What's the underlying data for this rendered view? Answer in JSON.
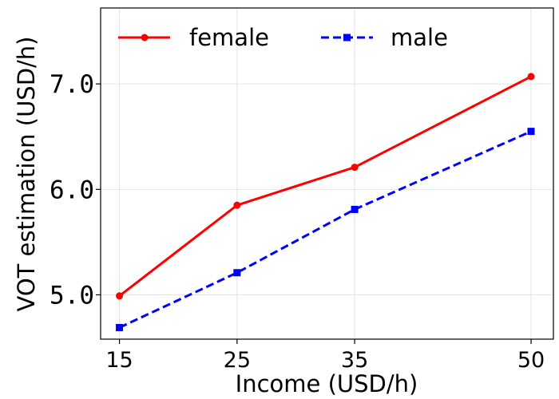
{
  "chart_data": {
    "type": "line",
    "title": "",
    "xlabel": "Income (USD/h)",
    "ylabel": "VOT estimation (USD/h)",
    "x": [
      15,
      25,
      35,
      50
    ],
    "x_tick_labels": [
      "15",
      "25",
      "35",
      "50"
    ],
    "y_ticks": [
      5.0,
      6.0,
      7.0
    ],
    "y_tick_labels": [
      "5.0",
      "6.0",
      "7.0"
    ],
    "xlim": [
      13.4,
      51.9
    ],
    "ylim": [
      4.58,
      7.72
    ],
    "grid": true,
    "legend_position": "top",
    "series": [
      {
        "name": "female",
        "values": [
          4.99,
          5.85,
          6.21,
          7.07
        ],
        "color": "#ff0000",
        "line_style": "solid",
        "marker": "circle"
      },
      {
        "name": "male",
        "values": [
          4.69,
          5.21,
          5.81,
          6.55
        ],
        "color": "#0000ff",
        "line_style": "dashed",
        "marker": "square"
      }
    ]
  }
}
